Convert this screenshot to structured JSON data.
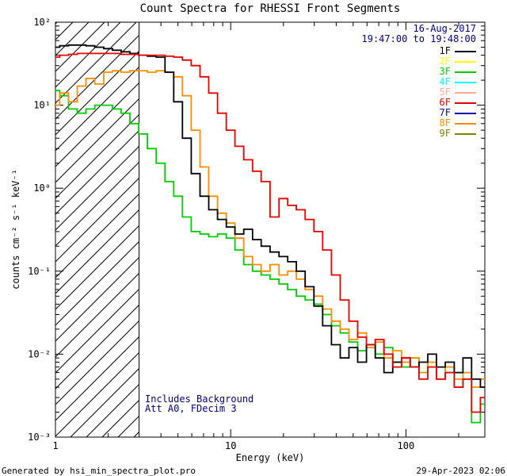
{
  "title": "Count Spectra for RHESSI Front Segments",
  "header": {
    "date": "16-Aug-2017",
    "time_range": "19:47:00 to 19:48:00"
  },
  "notes": {
    "line1": "Includes Background",
    "line2": "Att A0, FDecim 3"
  },
  "footer": {
    "generated_by": "Generated by hsi_min_spectra_plot.pro",
    "timestamp": "29-Apr-2023 02:06"
  },
  "colors": {
    "annotation": "#000080",
    "axis": "#000000",
    "background": "#ffffff"
  },
  "chart_data": {
    "type": "line",
    "title": "Count Spectra for RHESSI Front Segments",
    "xlabel": "Energy (keV)",
    "ylabel": "counts cm⁻² s⁻¹ keV⁻¹",
    "xscale": "log",
    "yscale": "log",
    "xlim": [
      1,
      282
    ],
    "ylim": [
      0.001,
      100
    ],
    "grid": false,
    "legend_position": "top-right-inside",
    "x_ticks": [
      {
        "value": 1,
        "label": "1"
      },
      {
        "value": 10,
        "label": "10"
      },
      {
        "value": 100,
        "label": "100"
      }
    ],
    "y_ticks": [
      {
        "value": 100,
        "label": "10²"
      },
      {
        "value": 10,
        "label": "10¹"
      },
      {
        "value": 1,
        "label": "10⁰"
      },
      {
        "value": 0.1,
        "label": "10⁻¹"
      },
      {
        "value": 0.01,
        "label": "10⁻²"
      },
      {
        "value": 0.001,
        "label": "10⁻³"
      }
    ],
    "hatched_region": {
      "from": 1,
      "to": 3
    },
    "energies": [
      1.0,
      1.12,
      1.26,
      1.41,
      1.58,
      1.78,
      2.0,
      2.24,
      2.51,
      2.82,
      3.16,
      3.55,
      3.98,
      4.47,
      5.01,
      5.62,
      6.31,
      7.08,
      7.94,
      8.91,
      10.0,
      11.2,
      12.6,
      14.1,
      15.8,
      17.8,
      20.0,
      22.4,
      25.1,
      28.2,
      31.6,
      35.5,
      39.8,
      44.7,
      50.1,
      56.2,
      63.1,
      70.8,
      79.4,
      89.1,
      100,
      112,
      126,
      141,
      158,
      178,
      200,
      224,
      251,
      282
    ],
    "series": [
      {
        "name": "1F",
        "color": "#000000",
        "z": 3,
        "values": [
          50,
          52,
          53,
          53,
          52,
          50,
          48,
          46,
          44,
          42,
          40,
          39,
          38,
          25,
          11,
          4,
          1.5,
          0.8,
          0.55,
          0.42,
          0.34,
          0.28,
          0.32,
          0.24,
          0.2,
          0.17,
          0.15,
          0.13,
          0.1,
          0.065,
          0.038,
          0.022,
          0.013,
          0.009,
          0.012,
          0.008,
          0.013,
          0.009,
          0.006,
          0.008,
          0.009,
          0.007,
          0.008,
          0.01,
          0.007,
          0.008,
          0.006,
          0.009,
          0.005,
          0.004
        ]
      },
      {
        "name": "2F",
        "color": "#ffff00",
        "z": 0,
        "values": []
      },
      {
        "name": "3F",
        "color": "#00cc00",
        "z": 1,
        "values": [
          15,
          13,
          9,
          8,
          9,
          10,
          10,
          9,
          8,
          6,
          4.5,
          3.0,
          2.0,
          1.2,
          0.8,
          0.45,
          0.3,
          0.28,
          0.26,
          0.28,
          0.25,
          0.18,
          0.12,
          0.1,
          0.09,
          0.08,
          0.07,
          0.06,
          0.05,
          0.045,
          0.04,
          0.03,
          0.022,
          0.018,
          0.014,
          0.011,
          0.013,
          0.01,
          0.012,
          0.008,
          0.007,
          0.009,
          0.006,
          0.007,
          0.005,
          0.006,
          0.004,
          0.005,
          0.0015,
          0.0025
        ]
      },
      {
        "name": "4F",
        "color": "#00ffff",
        "z": 0,
        "values": []
      },
      {
        "name": "5F",
        "color": "#ffaa99",
        "z": 0,
        "values": []
      },
      {
        "name": "6F",
        "color": "#e60000",
        "z": 4,
        "values": [
          38,
          40,
          41,
          42,
          42,
          42,
          42,
          42,
          41,
          41,
          40,
          40,
          40,
          39,
          38,
          35,
          30,
          22,
          14,
          8,
          5,
          3.2,
          2.2,
          1.6,
          1.2,
          0.45,
          0.75,
          0.62,
          0.55,
          0.42,
          0.3,
          0.18,
          0.09,
          0.045,
          0.025,
          0.016,
          0.013,
          0.015,
          0.01,
          0.007,
          0.009,
          0.007,
          0.005,
          0.007,
          0.005,
          0.006,
          0.004,
          0.005,
          0.002,
          0.003
        ]
      },
      {
        "name": "7F",
        "color": "#0000a0",
        "z": 0,
        "values": []
      },
      {
        "name": "8F",
        "color": "#ff8c00",
        "z": 2,
        "values": [
          10,
          14,
          11,
          17,
          21,
          18,
          25,
          26,
          25,
          26,
          26,
          25,
          26,
          25,
          22,
          13,
          5,
          1.8,
          0.8,
          0.5,
          0.38,
          0.25,
          0.15,
          0.12,
          0.1,
          0.12,
          0.09,
          0.1,
          0.08,
          0.06,
          0.05,
          0.035,
          0.025,
          0.02,
          0.015,
          0.018,
          0.012,
          0.014,
          0.009,
          0.011,
          0.008,
          0.009,
          0.006,
          0.008,
          0.005,
          0.007,
          0.005,
          0.006,
          0.004,
          0.005
        ]
      },
      {
        "name": "9F",
        "color": "#808000",
        "z": 0,
        "values": []
      }
    ]
  }
}
